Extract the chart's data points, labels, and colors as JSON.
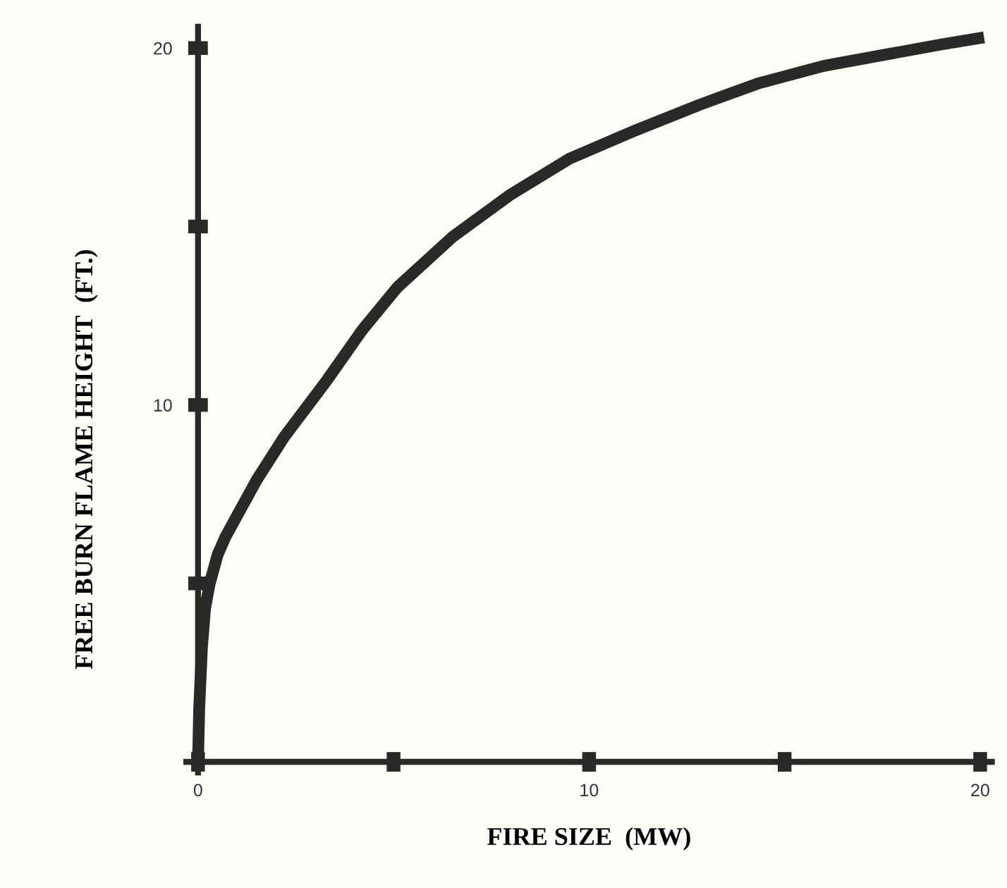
{
  "chart_data": {
    "type": "line",
    "xlabel": "FIRE SIZE  (MW)",
    "ylabel": "FREE BURN FLAME HEIGHT  (FT.)",
    "x": [
      0,
      0.03,
      0.1,
      0.18,
      0.3,
      0.5,
      0.7,
      1.0,
      1.5,
      2.2,
      3.3,
      4.2,
      5.1,
      6.5,
      8.0,
      9.5,
      11.2,
      12.8,
      14.3,
      16.0,
      17.5,
      19.0,
      20.1
    ],
    "series": [
      {
        "color": "#2b2828",
        "values": [
          0,
          1.5,
          3.2,
          4.3,
          5.0,
          5.8,
          6.3,
          6.9,
          7.9,
          9.1,
          10.7,
          12.1,
          13.3,
          14.7,
          15.9,
          16.9,
          17.7,
          18.4,
          19.0,
          19.5,
          19.8,
          20.1,
          20.3
        ]
      }
    ],
    "xlim": [
      -0.3,
      20.3
    ],
    "ylim": [
      -0.3,
      20.6
    ],
    "xticks": [
      0,
      {
        "value": 5,
        "label": null
      },
      10,
      {
        "value": 15,
        "label": null
      },
      20
    ],
    "yticks": [
      {
        "value": 5,
        "label": null
      },
      10,
      {
        "value": 15,
        "label": null
      },
      20
    ],
    "grid": false,
    "legend": false,
    "marker": "none",
    "line_style": "solid"
  }
}
